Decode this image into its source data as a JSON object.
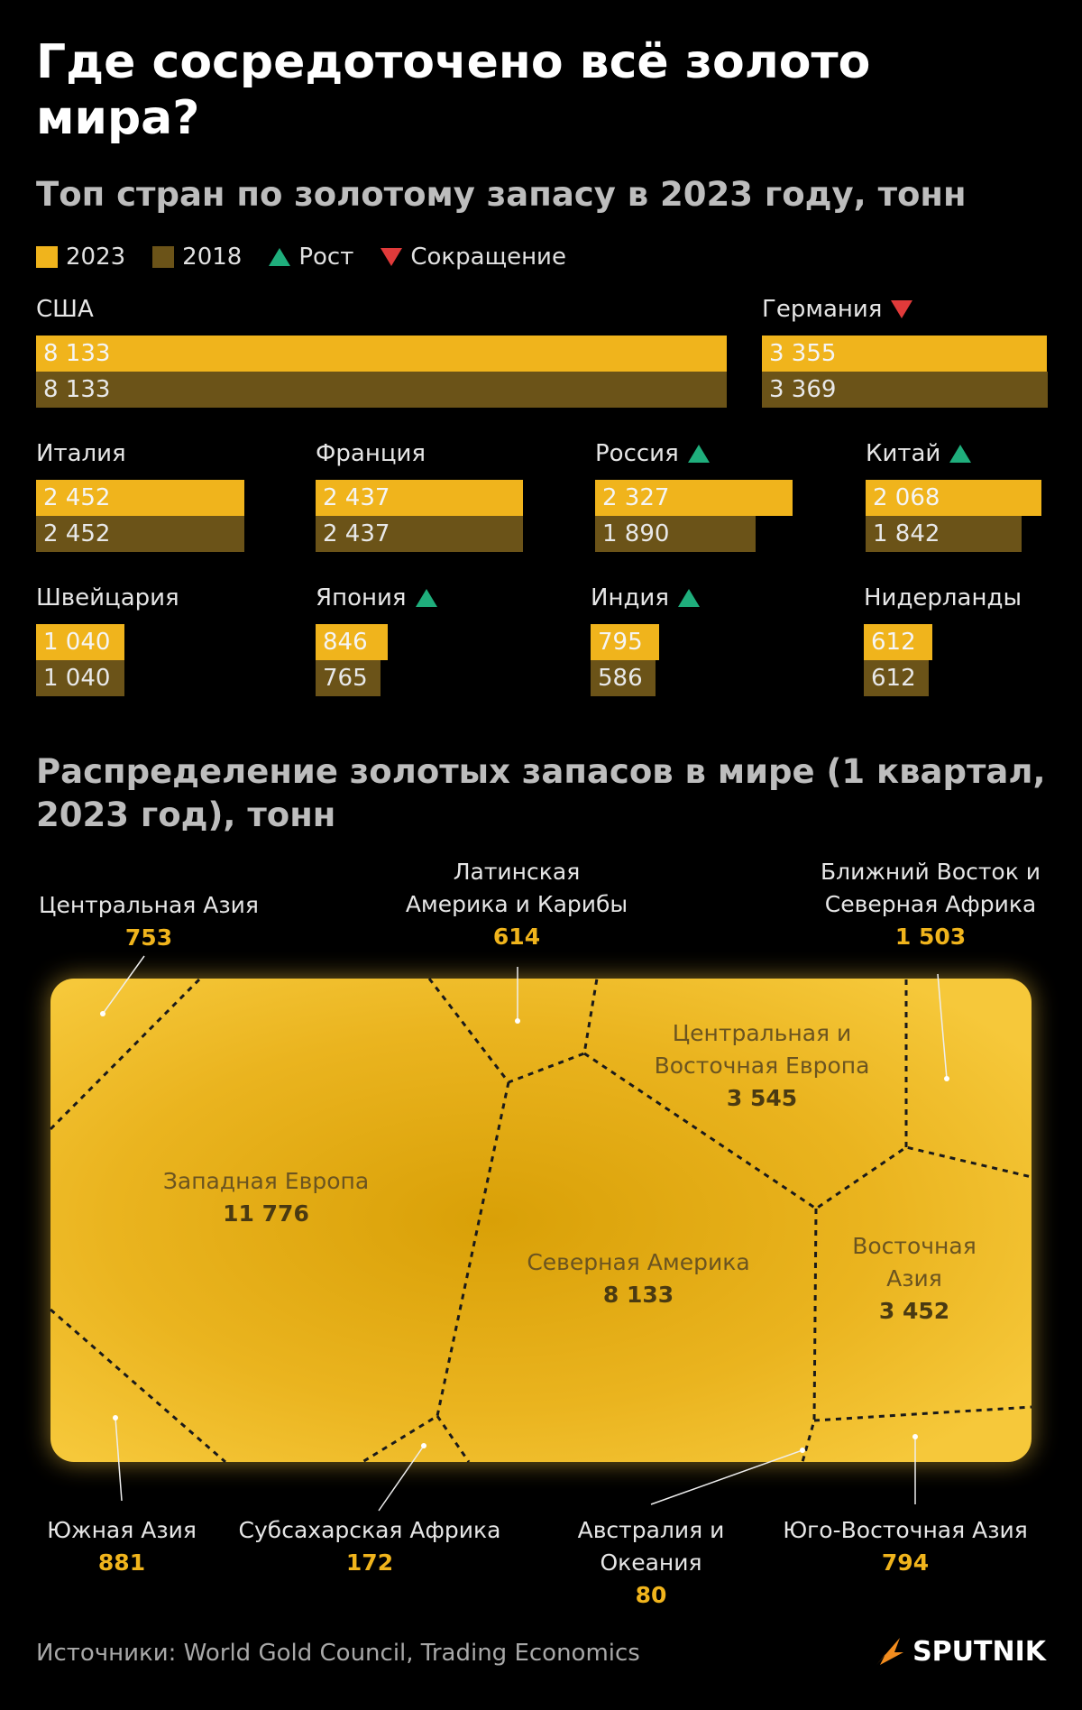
{
  "title": "Где сосредоточено всё золото мира?",
  "subtitle": "Топ стран по золотому запасу в 2023 году, тонн",
  "legend": {
    "y2023": "2023",
    "y2018": "2018",
    "growth": "Рост",
    "decline": "Сокращение"
  },
  "colors": {
    "bar2023": "#f0b41c",
    "bar2018": "#6b5318",
    "growth": "#1fae7c",
    "decline": "#e03a3a",
    "gold": "#f0b41c"
  },
  "chart_data": [
    {
      "type": "bar",
      "title": "Топ стран по золотому запасу в 2023 году, тонн",
      "series": [
        {
          "name": "2023",
          "values": [
            8133,
            3355,
            2452,
            2437,
            2327,
            2068,
            1040,
            846,
            795,
            612
          ]
        },
        {
          "name": "2018",
          "values": [
            8133,
            3369,
            2452,
            2437,
            1890,
            1842,
            1040,
            765,
            586,
            612
          ]
        }
      ],
      "categories": [
        "США",
        "Германия",
        "Италия",
        "Франция",
        "Россия",
        "Китай",
        "Швейцария",
        "Япония",
        "Индия",
        "Нидерланды"
      ],
      "countries": [
        {
          "name": "США",
          "v2023": 8133,
          "v2023_label": "8 133",
          "v2018": 8133,
          "v2018_label": "8 133",
          "trend": "none"
        },
        {
          "name": "Германия",
          "v2023": 3355,
          "v2023_label": "3 355",
          "v2018": 3369,
          "v2018_label": "3 369",
          "trend": "down"
        },
        {
          "name": "Италия",
          "v2023": 2452,
          "v2023_label": "2 452",
          "v2018": 2452,
          "v2018_label": "2 452",
          "trend": "none"
        },
        {
          "name": "Франция",
          "v2023": 2437,
          "v2023_label": "2 437",
          "v2018": 2437,
          "v2018_label": "2 437",
          "trend": "none"
        },
        {
          "name": "Россия",
          "v2023": 2327,
          "v2023_label": "2 327",
          "v2018": 1890,
          "v2018_label": "1 890",
          "trend": "up"
        },
        {
          "name": "Китай",
          "v2023": 2068,
          "v2023_label": "2 068",
          "v2018": 1842,
          "v2018_label": "1 842",
          "trend": "up"
        },
        {
          "name": "Швейцария",
          "v2023": 1040,
          "v2023_label": "1 040",
          "v2018": 1040,
          "v2018_label": "1 040",
          "trend": "none"
        },
        {
          "name": "Япония",
          "v2023": 846,
          "v2023_label": "846",
          "v2018": 765,
          "v2018_label": "765",
          "trend": "up"
        },
        {
          "name": "Индия",
          "v2023": 795,
          "v2023_label": "795",
          "v2018": 586,
          "v2018_label": "586",
          "trend": "up"
        },
        {
          "name": "Нидерланды",
          "v2023": 612,
          "v2023_label": "612",
          "v2018": 612,
          "v2018_label": "612",
          "trend": "none"
        }
      ]
    },
    {
      "type": "treemap",
      "title": "Распределение золотых запасов в мире (1 квартал, 2023 год), тонн",
      "regions": [
        {
          "name": "Западная Европа",
          "value": 11776,
          "label": "11 776"
        },
        {
          "name": "Северная Америка",
          "value": 8133,
          "label": "8 133"
        },
        {
          "name": "Центральная и Восточная Европа",
          "value": 3545,
          "label": "3 545"
        },
        {
          "name": "Восточная Азия",
          "value": 3452,
          "label": "3 452"
        },
        {
          "name": "Ближний Восток и Северная Африка",
          "value": 1503,
          "label": "1 503"
        },
        {
          "name": "Южная Азия",
          "value": 881,
          "label": "881"
        },
        {
          "name": "Юго-Восточная Азия",
          "value": 794,
          "label": "794"
        },
        {
          "name": "Центральная Азия",
          "value": 753,
          "label": "753"
        },
        {
          "name": "Латинская Америка и Карибы",
          "value": 614,
          "label": "614"
        },
        {
          "name": "Субсахарская Африка",
          "value": 172,
          "label": "172"
        },
        {
          "name": "Австралия и Океания",
          "value": 80,
          "label": "80"
        }
      ]
    }
  ],
  "map_labels": {
    "western_europe": [
      "Западная Европа",
      "11 776"
    ],
    "north_america": [
      "Северная Америка",
      "8 133"
    ],
    "cee": [
      "Центральная и",
      "Восточная Европа",
      "3 545"
    ],
    "east_asia": [
      "Восточная",
      "Азия",
      "3 452"
    ],
    "central_asia": [
      "Центральная Азия",
      "753"
    ],
    "latam": [
      "Латинская",
      "Америка и Карибы",
      "614"
    ],
    "mena": [
      "Ближний Восток и",
      "Северная Африка",
      "1 503"
    ],
    "south_asia": [
      "Южная Азия",
      "881"
    ],
    "ssa": [
      "Субсахарская Африка",
      "172"
    ],
    "oceania": [
      "Австралия и",
      "Океания",
      "80"
    ],
    "sea": [
      "Юго-Восточная Азия",
      "794"
    ]
  },
  "subtitle2": "Распределение золотых запасов в мире (1 квартал, 2023 год), тонн",
  "source": "Источники: World Gold Council, Trading Economics",
  "brand": "SPUTNIK"
}
